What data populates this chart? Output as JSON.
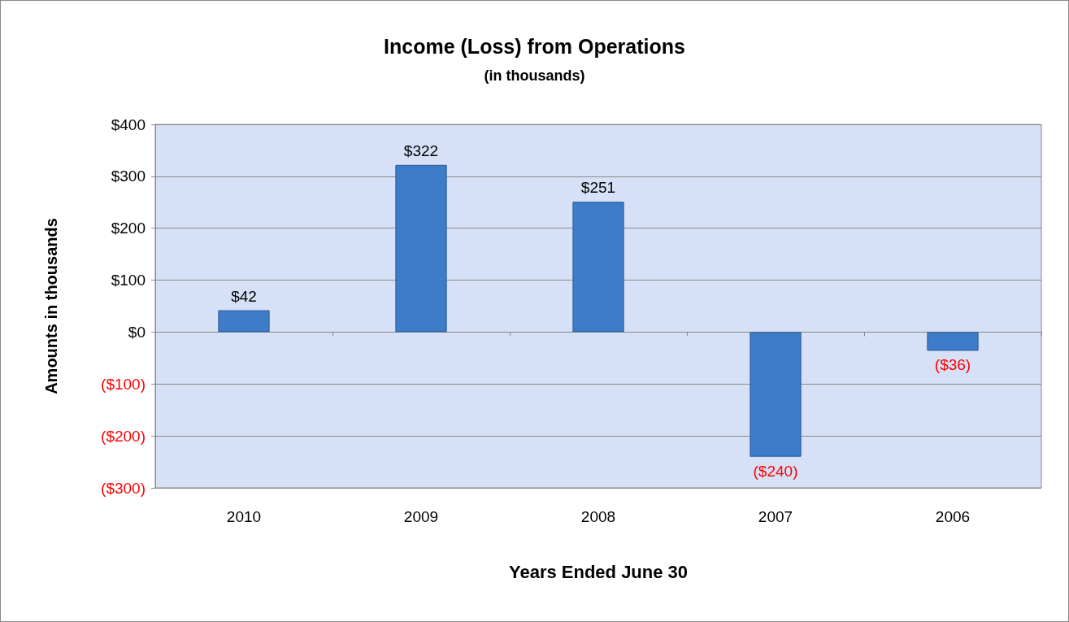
{
  "chart_data": {
    "type": "bar",
    "title": "Income (Loss) from Operations",
    "subtitle": "(in thousands)",
    "xlabel": "Years Ended June 30",
    "ylabel": "Amounts in thousands",
    "categories": [
      "2010",
      "2009",
      "2008",
      "2007",
      "2006"
    ],
    "values": [
      42,
      322,
      251,
      -240,
      -36
    ],
    "value_labels": [
      "$42",
      "$322",
      "$251",
      "($240)",
      "($36)"
    ],
    "color": "#3d7cc9",
    "ylim": [
      -300,
      400
    ],
    "yticks": [
      {
        "value": -300,
        "label": "($300)"
      },
      {
        "value": -200,
        "label": "($200)"
      },
      {
        "value": -100,
        "label": "($100)"
      },
      {
        "value": 0,
        "label": "$0"
      },
      {
        "value": 100,
        "label": "$100"
      },
      {
        "value": 200,
        "label": "$200"
      },
      {
        "value": 300,
        "label": "$300"
      },
      {
        "value": 400,
        "label": "$400"
      }
    ],
    "grid": "y"
  }
}
